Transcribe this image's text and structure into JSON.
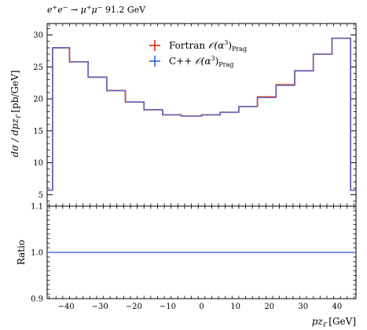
{
  "title": "e⁺e⁻ → μ⁺μ⁻ 91.2 GeV",
  "chart_data": [
    {
      "type": "line",
      "panel": "main",
      "title": "e⁺e⁻ → μ⁺μ⁻ 91.2 GeV",
      "xlabel": "pz_ℓ̄ [GeV]",
      "ylabel": "dσ / dpz_ℓ̄ [pb/GeV]",
      "xlim": [
        -45.6,
        45.6
      ],
      "ylim": [
        3.2,
        31.8
      ],
      "bin_edges": [
        -45.6,
        -44,
        -39,
        -33.5,
        -28,
        -22.5,
        -17,
        -11.5,
        -6,
        0,
        5.5,
        11,
        16.5,
        22,
        27.5,
        33,
        38.5,
        44,
        45.6
      ],
      "x_ticks": [
        -40,
        -30,
        -20,
        -10,
        0,
        10,
        20,
        30,
        40
      ],
      "x_tick_labels": [
        "−40",
        "−30",
        "−20",
        "−10",
        "0",
        "10",
        "20",
        "30",
        "40"
      ],
      "y_ticks": [
        5,
        10,
        15,
        20,
        25,
        30
      ],
      "legend_position": "top-center",
      "series": [
        {
          "name": "Fortran 𝒪(α³)Prag",
          "color": "#e8391f",
          "values": [
            5.7,
            28.0,
            25.8,
            23.4,
            21.3,
            19.5,
            18.3,
            17.5,
            17.3,
            17.5,
            17.9,
            18.8,
            20.3,
            22.2,
            24.4,
            27.0,
            29.5,
            5.7
          ]
        },
        {
          "name": "C++ 𝒪(α³)Prag",
          "color": "#4a6fe0",
          "values": [
            5.7,
            28.0,
            25.8,
            23.4,
            21.3,
            19.5,
            18.3,
            17.5,
            17.3,
            17.5,
            17.9,
            18.8,
            20.2,
            22.1,
            24.4,
            27.0,
            29.5,
            5.7
          ]
        }
      ]
    },
    {
      "type": "line",
      "panel": "ratio",
      "xlabel": "pz_ℓ̄ [GeV]",
      "ylabel": "Ratio",
      "xlim": [
        -45.6,
        45.6
      ],
      "ylim": [
        0.9,
        1.1
      ],
      "y_ticks": [
        0.9,
        1.0,
        1.1
      ],
      "y_tick_labels": [
        "0.9",
        "1.0",
        "1.1"
      ],
      "series": [
        {
          "name": "C++ / Fortran",
          "color": "#4a6fe0",
          "values": [
            1.0
          ]
        }
      ]
    }
  ]
}
